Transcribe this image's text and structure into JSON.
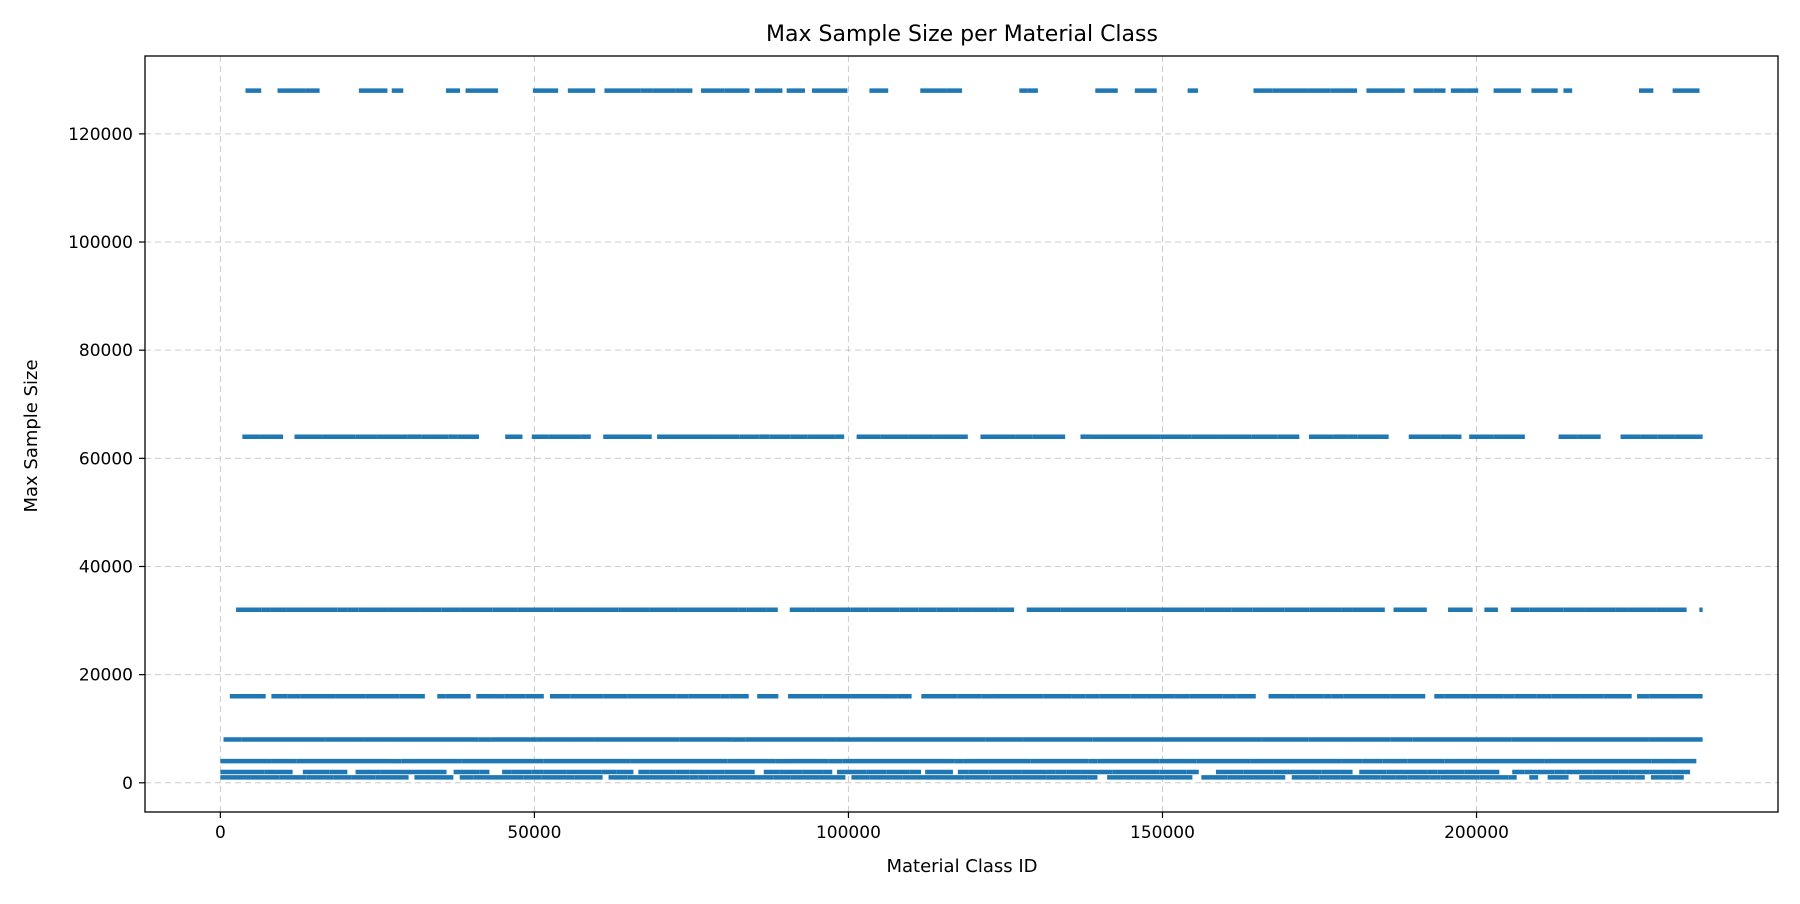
{
  "chart_data": {
    "type": "scatter",
    "title": "Max Sample Size per Material Class",
    "xlabel": "Material Class ID",
    "ylabel": "Max Sample Size",
    "xlim": [
      -12000,
      248000
    ],
    "ylim": [
      -5400,
      134400
    ],
    "x_ticks": [
      0,
      50000,
      100000,
      150000,
      200000
    ],
    "y_ticks": [
      0,
      20000,
      40000,
      60000,
      80000,
      100000,
      120000
    ],
    "grid": true,
    "legend": "none",
    "color": "#1f77b4",
    "series": [
      {
        "value": 128000,
        "x_start": 4000,
        "x_end": 236000,
        "density": 0.35,
        "seed": 11
      },
      {
        "value": 64000,
        "x_start": 3500,
        "x_end": 236000,
        "density": 0.62,
        "seed": 23
      },
      {
        "value": 32000,
        "x_start": 2500,
        "x_end": 236000,
        "density": 0.78,
        "seed": 37
      },
      {
        "value": 16000,
        "x_start": 1500,
        "x_end": 236000,
        "density": 0.86,
        "seed": 41
      },
      {
        "value": 8000,
        "x_start": 500,
        "x_end": 236000,
        "density": 0.98,
        "seed": 53
      },
      {
        "value": 4000,
        "x_start": 0,
        "x_end": 235000,
        "density": 0.99,
        "seed": 67
      },
      {
        "value": 2000,
        "x_start": 0,
        "x_end": 234000,
        "density": 0.82,
        "seed": 71
      },
      {
        "value": 1000,
        "x_start": 0,
        "x_end": 233000,
        "density": 0.85,
        "seed": 83
      }
    ]
  }
}
